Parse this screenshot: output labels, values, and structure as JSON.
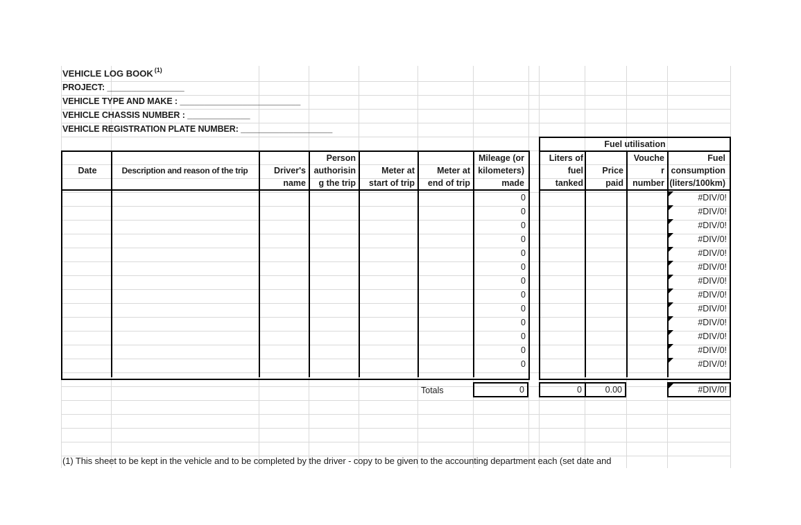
{
  "colors": {
    "border": "#000000",
    "grid": "#d9d9d9",
    "text": "#1d1d1d"
  },
  "header": {
    "title": "VEHICLE LOG BOOK",
    "title_note": "(1)",
    "info_lines": [
      {
        "label": "PROJECT:",
        "blank": "  ________________"
      },
      {
        "label": "VEHICLE TYPE AND MAKE :",
        "blank": " _________________________"
      },
      {
        "label": "VEHICLE CHASSIS NUMBER :",
        "blank": " _____________"
      },
      {
        "label": "VEHICLE REGISTRATION PLATE NUMBER:",
        "blank": " ___________________"
      }
    ]
  },
  "table": {
    "fuel_group_label": "Fuel utilisation",
    "columns": [
      {
        "id": "date",
        "label": "Date",
        "lines": [
          "Date"
        ]
      },
      {
        "id": "description",
        "label": "Description and reason of the trip",
        "lines": [
          "Description and reason of the trip"
        ]
      },
      {
        "id": "driver_name",
        "label": "Driver's name",
        "lines": [
          "Driver's",
          "name"
        ]
      },
      {
        "id": "person_authorising",
        "label": "Person authorising the trip",
        "lines": [
          "Person",
          "authorisin",
          "g the trip"
        ]
      },
      {
        "id": "meter_start",
        "label": "Meter at start of trip",
        "lines": [
          "Meter at",
          "start of trip"
        ]
      },
      {
        "id": "meter_end",
        "label": "Meter at end of trip",
        "lines": [
          "Meter at",
          "end of trip"
        ]
      },
      {
        "id": "mileage",
        "label": "Mileage (or kilometers) made",
        "lines": [
          "Mileage (or",
          "kilometers)",
          "made"
        ]
      },
      {
        "id": "liters",
        "label": "Liters of fuel tanked",
        "lines": [
          "Liters of",
          "fuel",
          "tanked"
        ]
      },
      {
        "id": "price",
        "label": "Price paid",
        "lines": [
          "Price",
          "paid"
        ]
      },
      {
        "id": "voucher",
        "label": "Voucher number",
        "lines": [
          "Vouche",
          "r",
          "number"
        ]
      },
      {
        "id": "consumption",
        "label": "Fuel consumption (liters/100km)",
        "lines": [
          "Fuel",
          "consumption",
          "(liters/100km)"
        ]
      }
    ],
    "rows": [
      {
        "mileage": "0",
        "consumption": "#DIV/0!"
      },
      {
        "mileage": "0",
        "consumption": "#DIV/0!"
      },
      {
        "mileage": "0",
        "consumption": "#DIV/0!"
      },
      {
        "mileage": "0",
        "consumption": "#DIV/0!"
      },
      {
        "mileage": "0",
        "consumption": "#DIV/0!"
      },
      {
        "mileage": "0",
        "consumption": "#DIV/0!"
      },
      {
        "mileage": "0",
        "consumption": "#DIV/0!"
      },
      {
        "mileage": "0",
        "consumption": "#DIV/0!"
      },
      {
        "mileage": "0",
        "consumption": "#DIV/0!"
      },
      {
        "mileage": "0",
        "consumption": "#DIV/0!"
      },
      {
        "mileage": "0",
        "consumption": "#DIV/0!"
      },
      {
        "mileage": "0",
        "consumption": "#DIV/0!"
      },
      {
        "mileage": "0",
        "consumption": "#DIV/0!"
      }
    ],
    "totals": {
      "label": "Totals",
      "mileage": "0",
      "liters": "0",
      "price": "0.00",
      "consumption": "#DIV/0!"
    }
  },
  "footnote": "(1)  This sheet to be kept in the vehicle and to be completed by the driver - copy to be given to the accounting department each (set date and"
}
